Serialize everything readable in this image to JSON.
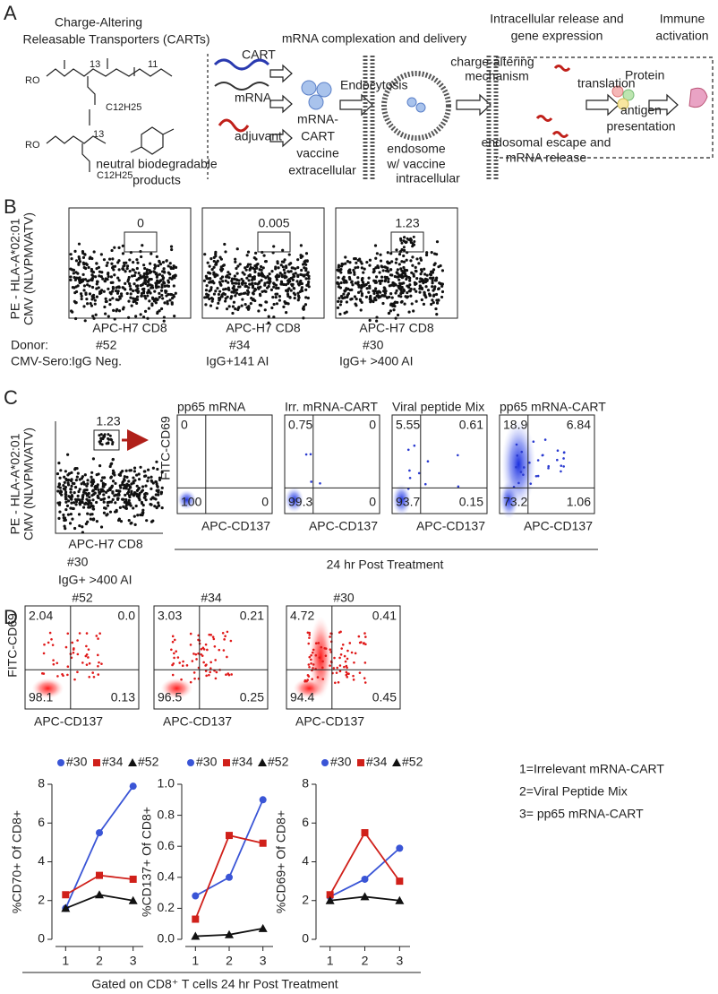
{
  "panel_a": {
    "label": "A",
    "cart_title": [
      "Charge-Altering",
      "Releasable Transporters (CARTs)"
    ],
    "chem_labels": [
      "RO",
      "13",
      "11",
      "C12H25",
      "RO",
      "13",
      "C12H25"
    ],
    "products": [
      "neutral biodegradable",
      "products"
    ],
    "delivery_title": "mRNA complexation and delivery",
    "components": [
      "CART",
      "mRNA",
      "adjuvant"
    ],
    "endocytosis": "Endocytosis",
    "vaccine": [
      "mRNA-",
      "CART",
      "vaccine"
    ],
    "extracellular": "extracellular",
    "endosome": [
      "endosome",
      "w/ vaccine"
    ],
    "intracellular": "intracellular",
    "release_title": [
      "Intracellular release and",
      "gene expression"
    ],
    "immune": [
      "Immune",
      "activation"
    ],
    "mechanism": [
      "charge-altering",
      "mechanism"
    ],
    "translation": "translation",
    "protein": "Protein",
    "antigen": [
      "antigen",
      "presentation"
    ],
    "escape": [
      "endosomal escape and",
      "mRNA release"
    ]
  },
  "panel_b": {
    "label": "B",
    "y_label": [
      "PE - HLA-A*02:01",
      "CMV (NLVPMVATV)"
    ],
    "x_label": "APC-H7 CD8",
    "donor_label": "Donor:",
    "sero_label": "CMV-Sero:",
    "plots": [
      {
        "gate": 0,
        "donor": "#52",
        "sero": "IgG Neg.",
        "sero_color": "#3a4fc4"
      },
      {
        "gate": 0.005,
        "donor": "#34",
        "sero": "IgG+141 AI",
        "sero_color": "#d0201a"
      },
      {
        "gate": 1.23,
        "donor": "#30",
        "sero": "IgG+ >400 AI",
        "sero_color": "#d0201a"
      }
    ]
  },
  "panel_c": {
    "label": "C",
    "source": {
      "gate": 1.23,
      "donor": "#30",
      "sero": "IgG+ >400 AI"
    },
    "y_label": "FITC-CD69",
    "x_label": "APC-CD137",
    "footer": "24 hr Post Treatment",
    "plots": [
      {
        "title": "pp65 mRNA",
        "q": [
          0,
          null,
          100,
          0
        ]
      },
      {
        "title": "Irr. mRNA-CART",
        "q": [
          0.75,
          0,
          99.3,
          0
        ]
      },
      {
        "title": "Viral peptide Mix",
        "q": [
          5.55,
          0.61,
          93.7,
          0.15
        ]
      },
      {
        "title": "pp65 mRNA-CART",
        "q": [
          18.9,
          6.84,
          73.2,
          1.06
        ]
      }
    ]
  },
  "panel_d": {
    "label": "D",
    "y_label": "FITC-CD69",
    "x_label": "APC-CD137",
    "plots": [
      {
        "donor": "#52",
        "q": [
          2.04,
          "0.0",
          98.1,
          0.13
        ]
      },
      {
        "donor": "#34",
        "q": [
          3.03,
          0.21,
          96.5,
          0.25
        ]
      },
      {
        "donor": "#30",
        "q": [
          4.72,
          0.41,
          94.4,
          0.45
        ]
      }
    ],
    "key": [
      "1=Irrelevant mRNA-CART",
      "2=Viral Peptide Mix",
      "3= pp65 mRNA-CART"
    ],
    "footer": "Gated on CD8⁺ T cells 24 hr Post Treatment"
  },
  "chart_data": [
    {
      "type": "line",
      "y_label": "%CD70+ Of CD8+",
      "x": [
        1,
        2,
        3
      ],
      "xlim": [
        0.7,
        3.3
      ],
      "xticks": [
        1,
        2,
        3
      ],
      "ylim": [
        0,
        8
      ],
      "yticks": [
        0,
        2,
        4,
        6,
        8
      ],
      "series": [
        {
          "name": "#30",
          "color": "#3a55d6",
          "marker": "circle",
          "values": [
            1.6,
            5.5,
            7.9
          ]
        },
        {
          "name": "#34",
          "color": "#d0201a",
          "marker": "square",
          "values": [
            2.3,
            3.3,
            3.1
          ]
        },
        {
          "name": "#52",
          "color": "#111111",
          "marker": "triangle",
          "values": [
            1.6,
            2.3,
            2.0
          ]
        }
      ]
    },
    {
      "type": "line",
      "y_label": "%CD137+ Of CD8+",
      "x": [
        1,
        2,
        3
      ],
      "xlim": [
        0.7,
        3.3
      ],
      "xticks": [
        1,
        2,
        3
      ],
      "ylim": [
        0,
        1
      ],
      "yticks": [
        {
          "value": 0,
          "label": "0.0"
        },
        0.2,
        0.4,
        0.6,
        0.8,
        {
          "value": 1,
          "label": "1.0"
        }
      ],
      "series": [
        {
          "name": "#30",
          "color": "#3a55d6",
          "marker": "circle",
          "values": [
            0.28,
            0.4,
            0.9
          ]
        },
        {
          "name": "#34",
          "color": "#d0201a",
          "marker": "square",
          "values": [
            0.13,
            0.67,
            0.62
          ]
        },
        {
          "name": "#52",
          "color": "#111111",
          "marker": "triangle",
          "values": [
            0.02,
            0.03,
            0.07
          ]
        }
      ]
    },
    {
      "type": "line",
      "y_label": "%CD69+ Of CD8+",
      "x": [
        1,
        2,
        3
      ],
      "xlim": [
        0.7,
        3.3
      ],
      "xticks": [
        1,
        2,
        3
      ],
      "ylim": [
        0,
        8
      ],
      "yticks": [
        0,
        2,
        4,
        6,
        8
      ],
      "series": [
        {
          "name": "#30",
          "color": "#3a55d6",
          "marker": "circle",
          "values": [
            2.2,
            3.1,
            4.7
          ]
        },
        {
          "name": "#34",
          "color": "#d0201a",
          "marker": "square",
          "values": [
            2.3,
            5.5,
            3.0
          ]
        },
        {
          "name": "#52",
          "color": "#111111",
          "marker": "triangle",
          "values": [
            2.0,
            2.2,
            2.0
          ]
        }
      ]
    }
  ]
}
